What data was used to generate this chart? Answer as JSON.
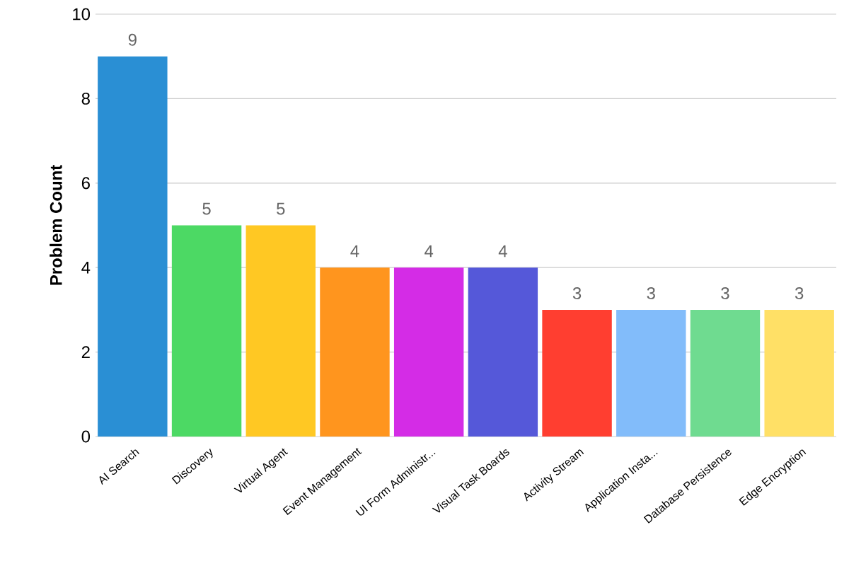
{
  "chart_data": {
    "type": "bar",
    "ylabel": "Problem Count",
    "categories": [
      "AI Search",
      "Discovery",
      "Virtual Agent",
      "Event Management",
      "UI Form Administr...",
      "Visual Task Boards",
      "Activity Stream",
      "Application Insta...",
      "Database Persistence",
      "Edge Encryption"
    ],
    "values": [
      9,
      5,
      5,
      4,
      4,
      4,
      3,
      3,
      3,
      3
    ],
    "colors": [
      "#2a8fd4",
      "#4cd964",
      "#ffc823",
      "#ff951e",
      "#d42ce6",
      "#5558d9",
      "#ff3e30",
      "#82bcfa",
      "#6fdb90",
      "#ffe066"
    ],
    "ylim": [
      0,
      10
    ],
    "yticks": [
      0,
      2,
      4,
      6,
      8,
      10
    ],
    "grid": "y",
    "data_labels": true
  }
}
